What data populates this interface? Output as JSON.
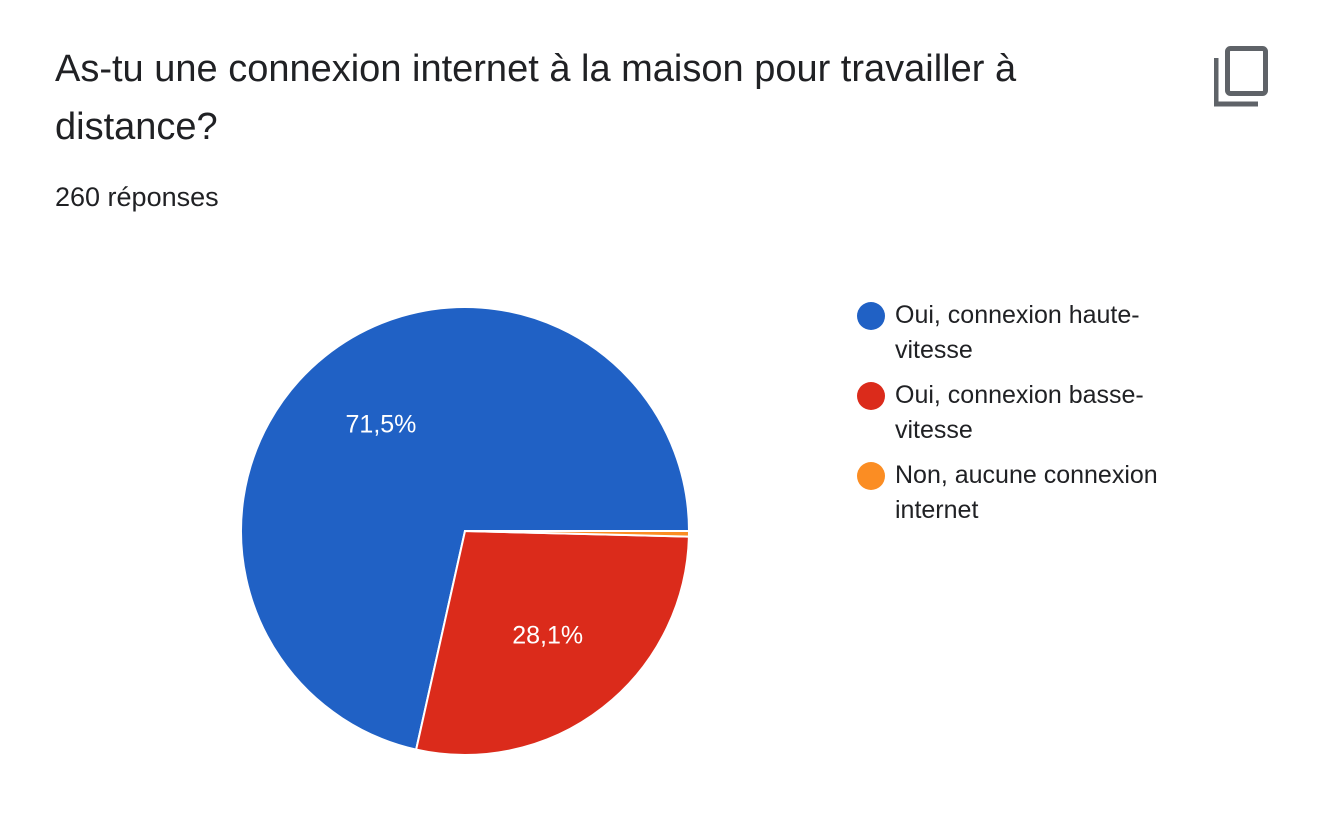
{
  "card": {
    "title": "As-tu une connexion internet à la maison pour travailler à distance?",
    "response_count": "260 réponses",
    "copy_icon": "copy-icon"
  },
  "chart_data": {
    "type": "pie",
    "title": "As-tu une connexion internet à la maison pour travailler à distance?",
    "categories": [
      "Oui, connexion haute-vitesse",
      "Oui, connexion basse-vitesse",
      "Non, aucune connexion internet"
    ],
    "values": [
      71.5,
      28.1,
      0.4
    ],
    "value_labels": [
      "71,5%",
      "28,1%",
      ""
    ],
    "colors": [
      "#2061c5",
      "#db2b1b",
      "#fb8d23"
    ],
    "legend_placement": "right"
  },
  "legend": [
    {
      "line1": "Oui, connexion haute-",
      "line2": "vitesse",
      "color": "#2061c5"
    },
    {
      "line1": "Oui, connexion basse-",
      "line2": "vitesse",
      "color": "#db2b1b"
    },
    {
      "line1": "Non, aucune connexion",
      "line2": "internet",
      "color": "#fb8d23"
    }
  ]
}
